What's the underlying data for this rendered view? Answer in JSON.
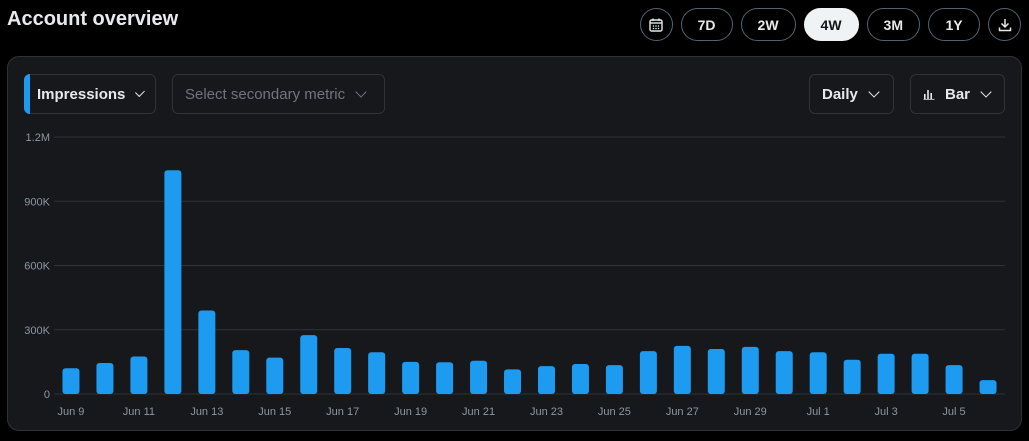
{
  "header": {
    "title": "Account overview"
  },
  "range": {
    "calendar_icon": "calendar-icon",
    "options": [
      "7D",
      "2W",
      "4W",
      "3M",
      "1Y"
    ],
    "selected": "4W",
    "download_icon": "download-icon"
  },
  "controls": {
    "primary_metric": "Impressions",
    "secondary_placeholder": "Select secondary metric",
    "granularity": "Daily",
    "chart_type_label": "Bar"
  },
  "colors": {
    "bar": "#1d9bf0",
    "accent": "#1d9bf0",
    "grid": "#2f3336"
  },
  "chart_data": {
    "type": "bar",
    "title": "",
    "xlabel": "",
    "ylabel": "",
    "ylim": [
      0,
      1200000
    ],
    "y_ticks": [
      {
        "value": 0,
        "label": "0"
      },
      {
        "value": 300000,
        "label": "300K"
      },
      {
        "value": 600000,
        "label": "600K"
      },
      {
        "value": 900000,
        "label": "900K"
      },
      {
        "value": 1200000,
        "label": "1.2M"
      }
    ],
    "categories": [
      "Jun 9",
      "Jun 10",
      "Jun 11",
      "Jun 12",
      "Jun 13",
      "Jun 14",
      "Jun 15",
      "Jun 16",
      "Jun 17",
      "Jun 18",
      "Jun 19",
      "Jun 20",
      "Jun 21",
      "Jun 22",
      "Jun 23",
      "Jun 24",
      "Jun 25",
      "Jun 26",
      "Jun 27",
      "Jun 28",
      "Jun 29",
      "Jun 30",
      "Jul 1",
      "Jul 2",
      "Jul 3",
      "Jul 4",
      "Jul 5",
      "Jul 6"
    ],
    "x_tick_labels": [
      "Jun 9",
      "Jun 11",
      "Jun 13",
      "Jun 15",
      "Jun 17",
      "Jun 19",
      "Jun 21",
      "Jun 23",
      "Jun 25",
      "Jun 27",
      "Jun 29",
      "Jul 1",
      "Jul 3",
      "Jul 5"
    ],
    "values": [
      120000,
      145000,
      175000,
      1045000,
      390000,
      205000,
      170000,
      275000,
      215000,
      195000,
      150000,
      148000,
      155000,
      115000,
      130000,
      140000,
      135000,
      200000,
      225000,
      210000,
      220000,
      200000,
      195000,
      160000,
      188000,
      188000,
      135000,
      65000
    ],
    "grid": true,
    "legend": "none"
  }
}
